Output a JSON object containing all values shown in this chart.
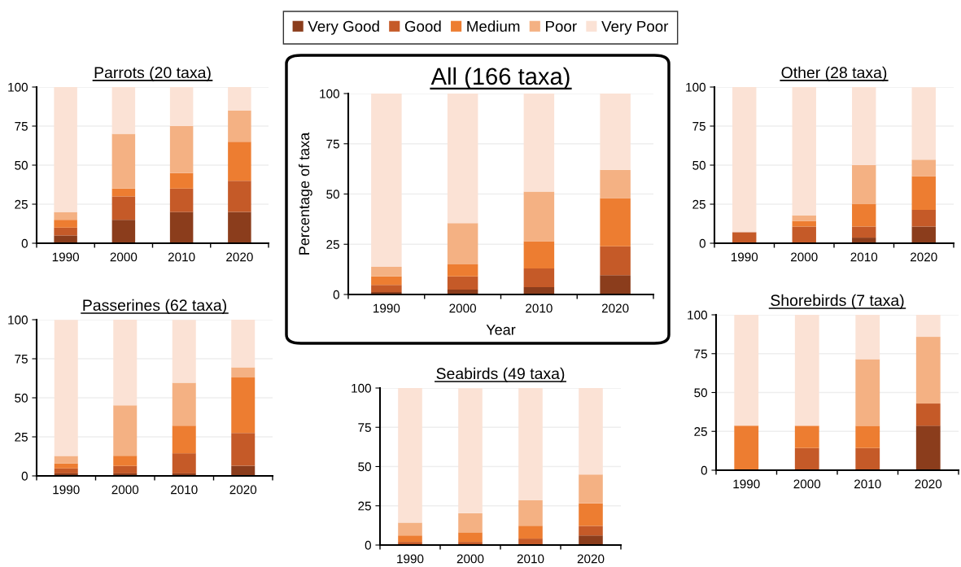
{
  "chart_data": [
    {
      "type": "bar",
      "title": "Parrots (20 taxa)",
      "stacked": true,
      "grid": "y",
      "legend": "top",
      "categories": [
        "1990",
        "2000",
        "2010",
        "2020"
      ],
      "ylim": [
        0,
        100
      ],
      "yticks": [
        0,
        25,
        50,
        75,
        100
      ],
      "series": [
        {
          "name": "Very Good",
          "color": "#8b3d1c",
          "values": [
            5,
            15,
            20,
            20
          ]
        },
        {
          "name": "Good",
          "color": "#c55a28",
          "values": [
            5,
            15,
            15,
            20
          ]
        },
        {
          "name": "Medium",
          "color": "#ed7d31",
          "values": [
            5,
            5,
            10,
            25
          ]
        },
        {
          "name": "Poor",
          "color": "#f4b183",
          "values": [
            5,
            35,
            30,
            20
          ]
        },
        {
          "name": "Very Poor",
          "color": "#fbe2d5",
          "values": [
            80,
            30,
            25,
            15
          ]
        }
      ]
    },
    {
      "type": "bar",
      "title": "All (166 taxa)",
      "xlabel": "Year",
      "ylabel": "Percentage of taxa",
      "stacked": true,
      "grid": "y",
      "categories": [
        "1990",
        "2000",
        "2010",
        "2020"
      ],
      "ylim": [
        0,
        100
      ],
      "yticks": [
        0,
        25,
        50,
        75,
        100
      ],
      "series": [
        {
          "color": "#8b3d1c",
          "values": [
            1.2,
            2.4,
            3.6,
            9.6
          ]
        },
        {
          "color": "#c55a28",
          "values": [
            3.6,
            6.6,
            9.4,
            14.4
          ]
        },
        {
          "color": "#ed7d31",
          "values": [
            4.2,
            6,
            13.5,
            24
          ]
        },
        {
          "color": "#f4b183",
          "values": [
            4.8,
            20.5,
            24.7,
            14
          ]
        },
        {
          "color": "#fbe2d5",
          "values": [
            86.2,
            64.5,
            48.8,
            38
          ]
        }
      ]
    },
    {
      "type": "bar",
      "title": "Other (28 taxa)",
      "stacked": true,
      "grid": "y",
      "categories": [
        "1990",
        "2000",
        "2010",
        "2020"
      ],
      "ylim": [
        0,
        100
      ],
      "yticks": [
        0,
        25,
        50,
        75,
        100
      ],
      "series": [
        {
          "color": "#8b3d1c",
          "values": [
            0,
            0,
            3.6,
            10.7
          ]
        },
        {
          "color": "#c55a28",
          "values": [
            7.1,
            10.7,
            7.1,
            10.7
          ]
        },
        {
          "color": "#ed7d31",
          "values": [
            0,
            3.6,
            14.3,
            21.4
          ]
        },
        {
          "color": "#f4b183",
          "values": [
            0,
            3.6,
            25,
            10.7
          ]
        },
        {
          "color": "#fbe2d5",
          "values": [
            92.9,
            82.1,
            50,
            46.4
          ]
        }
      ]
    },
    {
      "type": "bar",
      "title": "Passerines (62 taxa)",
      "stacked": true,
      "grid": "y",
      "categories": [
        "1990",
        "2000",
        "2010",
        "2020"
      ],
      "ylim": [
        0,
        100
      ],
      "yticks": [
        0,
        25,
        50,
        75,
        100
      ],
      "series": [
        {
          "color": "#8b3d1c",
          "values": [
            1.6,
            1.6,
            1.6,
            6.5
          ]
        },
        {
          "color": "#c55a28",
          "values": [
            3.2,
            4.8,
            12.9,
            21
          ]
        },
        {
          "color": "#ed7d31",
          "values": [
            3.2,
            6.5,
            17.7,
            35.5
          ]
        },
        {
          "color": "#f4b183",
          "values": [
            4.8,
            32.3,
            27.4,
            6.5
          ]
        },
        {
          "color": "#fbe2d5",
          "values": [
            87.1,
            54.8,
            40.3,
            30.6
          ]
        }
      ]
    },
    {
      "type": "bar",
      "title": "Seabirds (49 taxa)",
      "stacked": true,
      "grid": "y",
      "categories": [
        "1990",
        "2000",
        "2010",
        "2020"
      ],
      "ylim": [
        0,
        100
      ],
      "yticks": [
        0,
        25,
        50,
        75,
        100
      ],
      "series": [
        {
          "color": "#8b3d1c",
          "values": [
            0,
            0,
            0,
            6.1
          ]
        },
        {
          "color": "#c55a28",
          "values": [
            2,
            2,
            4.1,
            6.1
          ]
        },
        {
          "color": "#ed7d31",
          "values": [
            4.1,
            6.1,
            8.2,
            14.3
          ]
        },
        {
          "color": "#f4b183",
          "values": [
            8.2,
            12.2,
            16.3,
            18.4
          ]
        },
        {
          "color": "#fbe2d5",
          "values": [
            85.7,
            79.6,
            71.4,
            55.1
          ]
        }
      ]
    },
    {
      "type": "bar",
      "title": "Shorebirds (7 taxa)",
      "stacked": true,
      "grid": "y",
      "categories": [
        "1990",
        "2000",
        "2010",
        "2020"
      ],
      "ylim": [
        0,
        100
      ],
      "yticks": [
        0,
        25,
        50,
        75,
        100
      ],
      "series": [
        {
          "color": "#8b3d1c",
          "values": [
            0,
            0,
            0,
            28.6
          ]
        },
        {
          "color": "#c55a28",
          "values": [
            0,
            14.3,
            14.3,
            14.3
          ]
        },
        {
          "color": "#ed7d31",
          "values": [
            28.6,
            14.3,
            14.3,
            0
          ]
        },
        {
          "color": "#f4b183",
          "values": [
            0,
            0,
            42.9,
            42.9
          ]
        },
        {
          "color": "#fbe2d5",
          "values": [
            71.4,
            71.4,
            28.6,
            14.3
          ]
        }
      ]
    }
  ]
}
